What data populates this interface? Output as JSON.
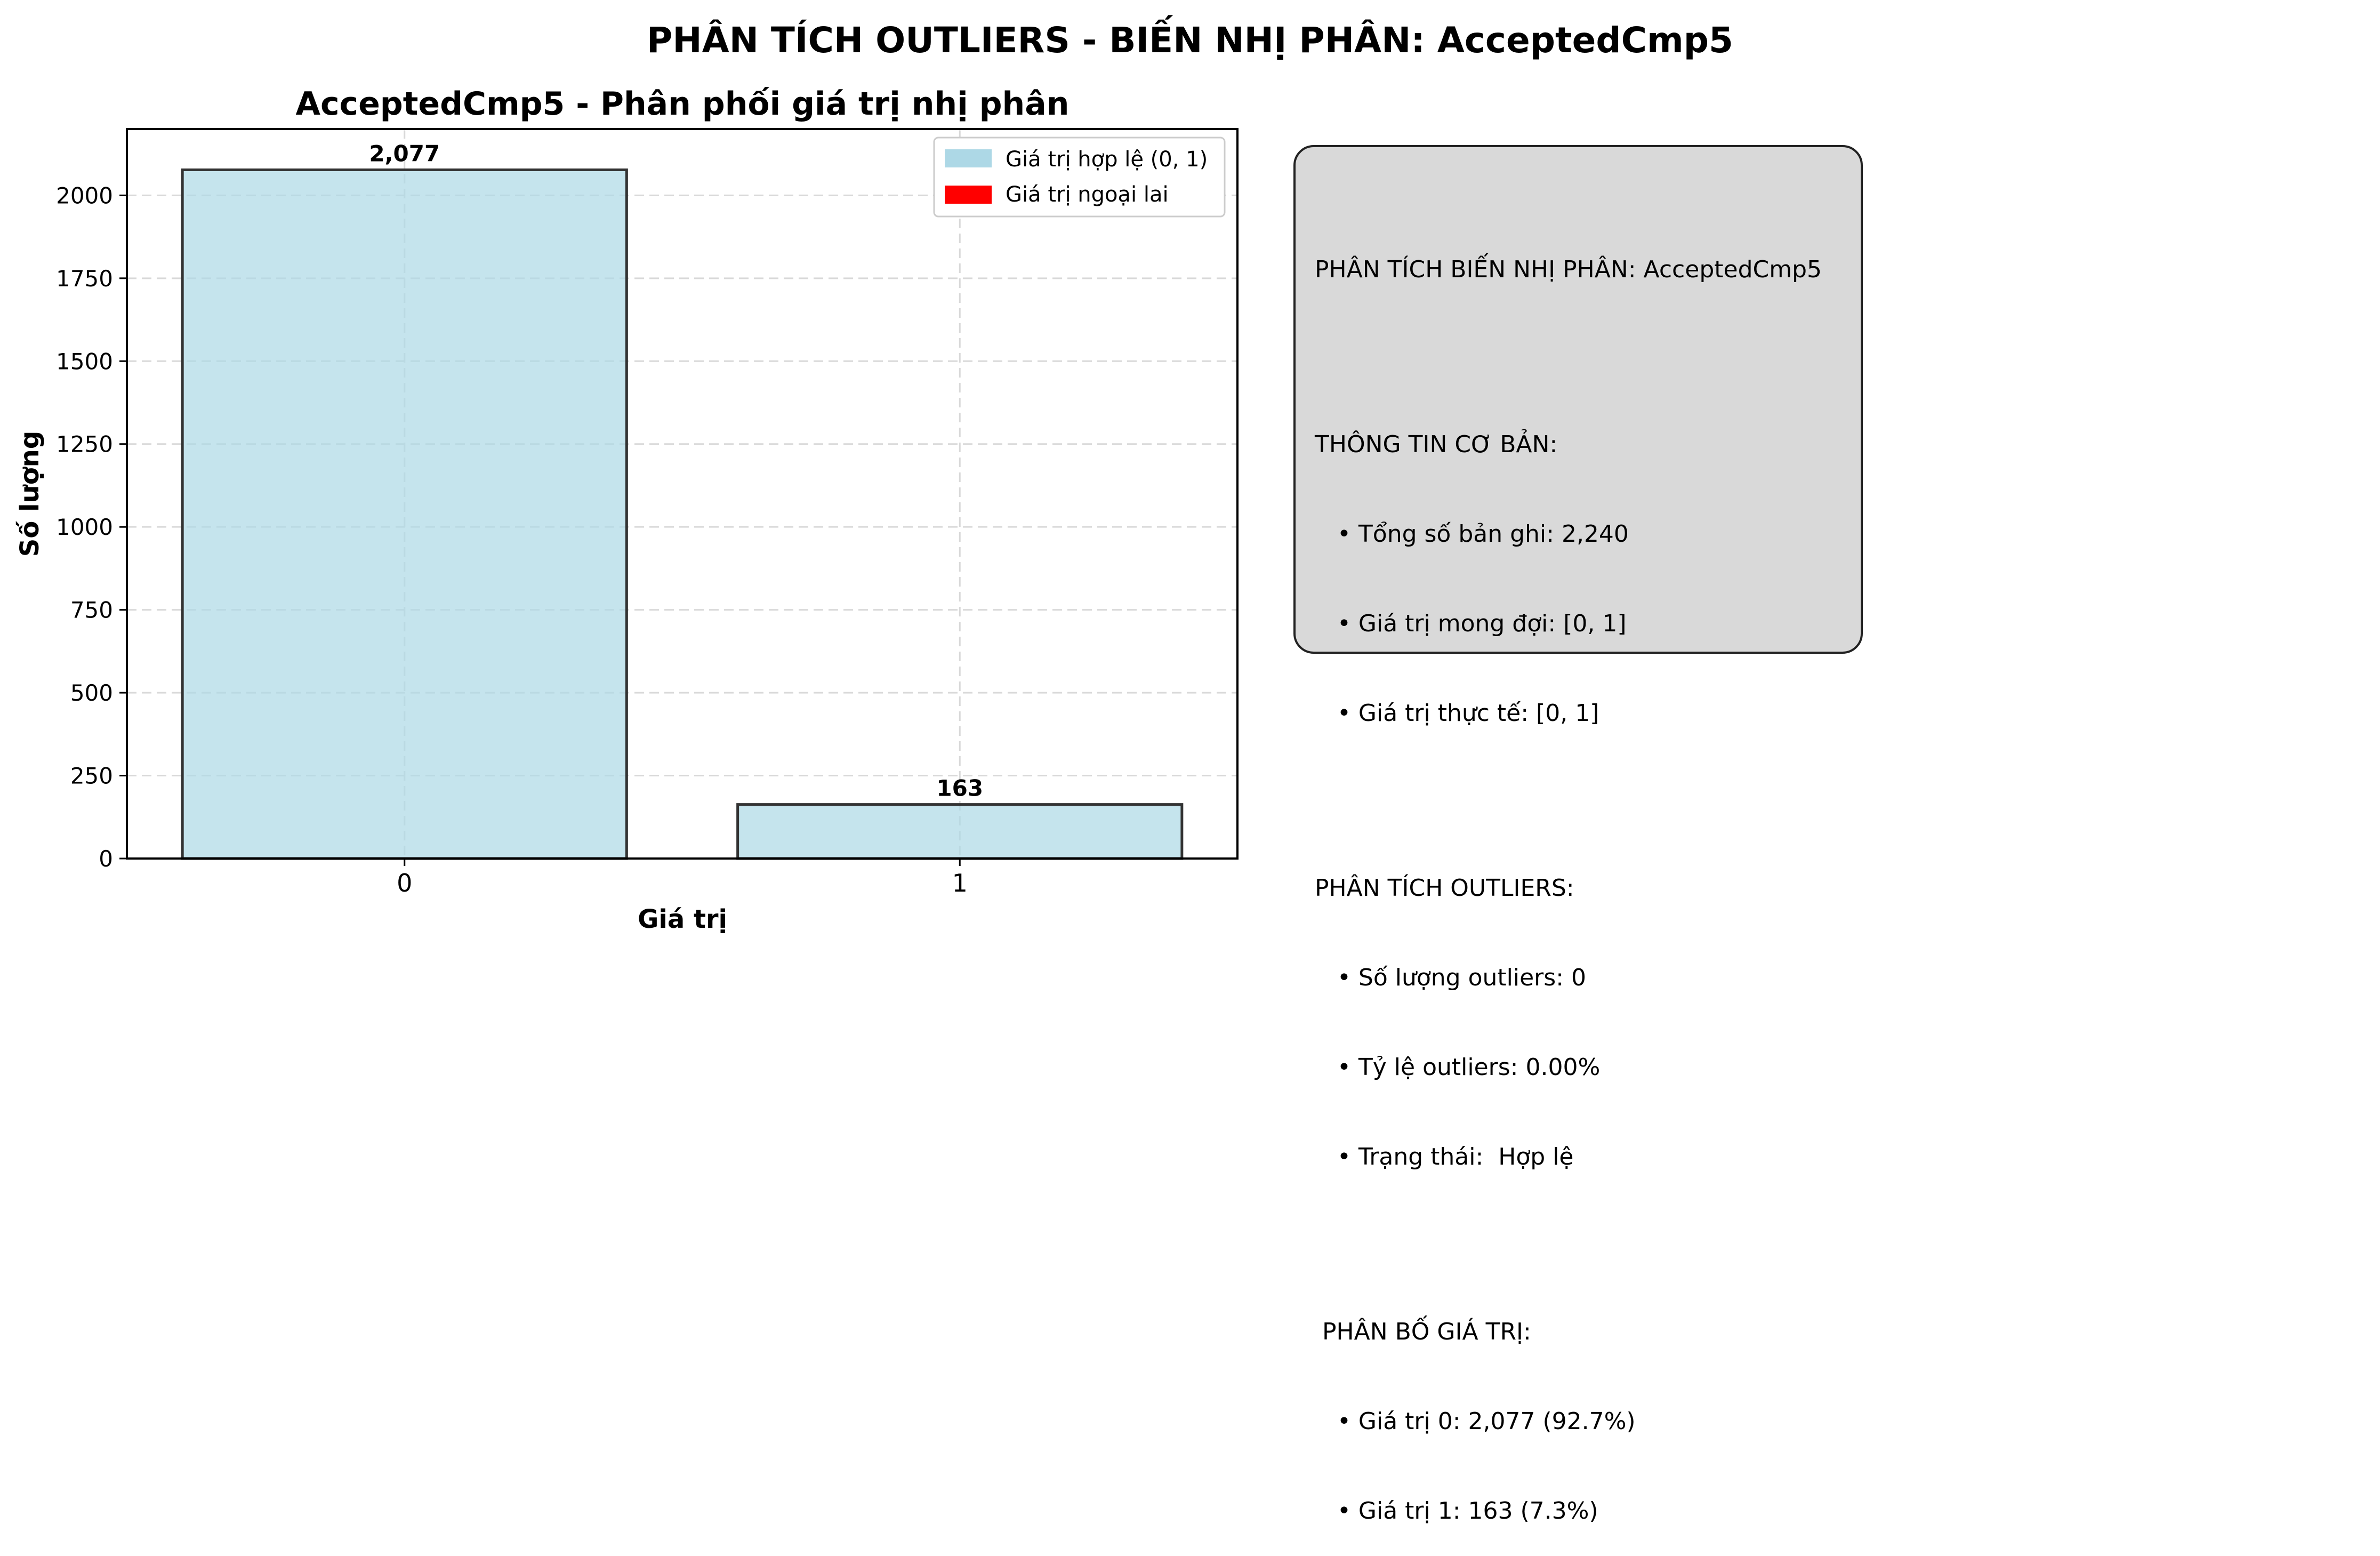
{
  "figure_title": "PHÂN TÍCH OUTLIERS - BIẾN NHỊ PHÂN: AcceptedCmp5",
  "chart_data": {
    "type": "bar",
    "title": "AcceptedCmp5 - Phân phối giá trị nhị phân",
    "xlabel": "Giá trị",
    "ylabel": "Số lượng",
    "categories": [
      "0",
      "1"
    ],
    "values": [
      2077,
      163
    ],
    "data_labels": [
      "2,077",
      "163"
    ],
    "ylim": [
      0,
      2200
    ],
    "yticks": [
      0,
      250,
      500,
      750,
      1000,
      1250,
      1500,
      1750,
      2000
    ],
    "grid": true,
    "legend_position": "top-right",
    "legend": [
      {
        "label": "Giá trị hợp lệ (0, 1)",
        "color": "#add8e6"
      },
      {
        "label": "Giá trị ngoại lai",
        "color": "#ff0000"
      }
    ],
    "bar_color": "#add8e6"
  },
  "info_box": {
    "title": "PHÂN TÍCH BIẾN NHỊ PHÂN: AcceptedCmp5",
    "basic_header": "THÔNG TIN CƠ BẢN:",
    "basic_lines": [
      "   • Tổng số bản ghi: 2,240",
      "   • Giá trị mong đợi: [0, 1]",
      "   • Giá trị thực tế: [0, 1]"
    ],
    "outlier_header": "PHÂN TÍCH OUTLIERS:",
    "outlier_lines": [
      "   • Số lượng outliers: 0",
      "   • Tỷ lệ outliers: 0.00%",
      "   • Trạng thái:  Hợp lệ"
    ],
    "dist_header": " PHÂN BỐ GIÁ TRỊ:",
    "dist_lines": [
      "   • Giá trị 0: 2,077 (92.7%)",
      "   • Giá trị 1: 163 (7.3%)"
    ]
  }
}
